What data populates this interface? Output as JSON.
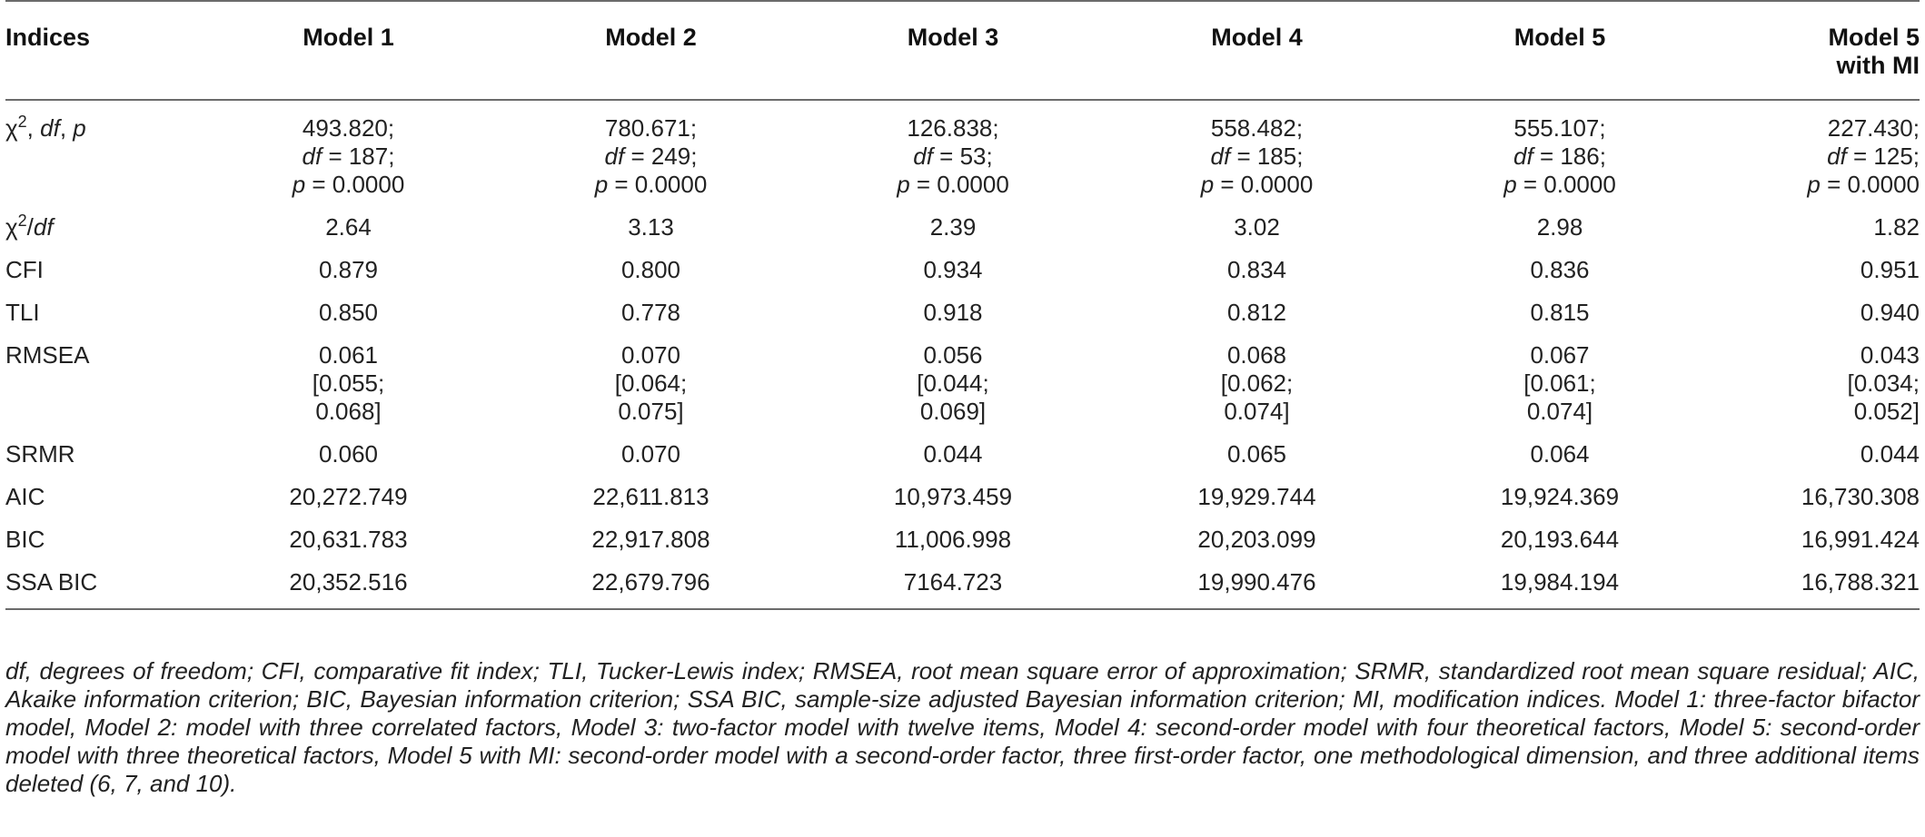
{
  "table": {
    "headers": [
      "Indices",
      "Model 1",
      "Model 2",
      "Model 3",
      "Model 4",
      "Model 5",
      "Model 5 with MI"
    ],
    "rows": [
      {
        "label": "χ², df, p",
        "cells": [
          [
            "493.820;",
            "df = 187;",
            "p = 0.0000"
          ],
          [
            "780.671;",
            "df = 249;",
            "p = 0.0000"
          ],
          [
            "126.838;",
            "df = 53;",
            "p = 0.0000"
          ],
          [
            "558.482;",
            "df = 185;",
            "p = 0.0000"
          ],
          [
            "555.107;",
            "df = 186;",
            "p = 0.0000"
          ],
          [
            "227.430;",
            "df = 125;",
            "p = 0.0000"
          ]
        ]
      },
      {
        "label": "χ²/df",
        "cells": [
          [
            "2.64"
          ],
          [
            "3.13"
          ],
          [
            "2.39"
          ],
          [
            "3.02"
          ],
          [
            "2.98"
          ],
          [
            "1.82"
          ]
        ]
      },
      {
        "label": "CFI",
        "cells": [
          [
            "0.879"
          ],
          [
            "0.800"
          ],
          [
            "0.934"
          ],
          [
            "0.834"
          ],
          [
            "0.836"
          ],
          [
            "0.951"
          ]
        ]
      },
      {
        "label": "TLI",
        "cells": [
          [
            "0.850"
          ],
          [
            "0.778"
          ],
          [
            "0.918"
          ],
          [
            "0.812"
          ],
          [
            "0.815"
          ],
          [
            "0.940"
          ]
        ]
      },
      {
        "label": "RMSEA",
        "cells": [
          [
            "0.061",
            "[0.055;",
            "0.068]"
          ],
          [
            "0.070",
            "[0.064;",
            "0.075]"
          ],
          [
            "0.056",
            "[0.044;",
            "0.069]"
          ],
          [
            "0.068",
            "[0.062;",
            "0.074]"
          ],
          [
            "0.067",
            "[0.061;",
            "0.074]"
          ],
          [
            "0.043",
            "[0.034;",
            "0.052]"
          ]
        ]
      },
      {
        "label": "SRMR",
        "cells": [
          [
            "0.060"
          ],
          [
            "0.070"
          ],
          [
            "0.044"
          ],
          [
            "0.065"
          ],
          [
            "0.064"
          ],
          [
            "0.044"
          ]
        ]
      },
      {
        "label": "AIC",
        "cells": [
          [
            "20,272.749"
          ],
          [
            "22,611.813"
          ],
          [
            "10,973.459"
          ],
          [
            "19,929.744"
          ],
          [
            "19,924.369"
          ],
          [
            "16,730.308"
          ]
        ]
      },
      {
        "label": "BIC",
        "cells": [
          [
            "20,631.783"
          ],
          [
            "22,917.808"
          ],
          [
            "11,006.998"
          ],
          [
            "20,203.099"
          ],
          [
            "20,193.644"
          ],
          [
            "16,991.424"
          ]
        ]
      },
      {
        "label": "SSA BIC",
        "cells": [
          [
            "20,352.516"
          ],
          [
            "22,679.796"
          ],
          [
            "7164.723"
          ],
          [
            "19,990.476"
          ],
          [
            "19,984.194"
          ],
          [
            "16,788.321"
          ]
        ]
      }
    ]
  },
  "footnote": "df, degrees of freedom; CFI, comparative fit index; TLI, Tucker-Lewis index; RMSEA, root mean square error of approximation; SRMR, standardized root mean square residual; AIC, Akaike information criterion; BIC, Bayesian information criterion; SSA BIC, sample-size adjusted Bayesian information criterion; MI, modification indices. Model 1: three-factor bifactor model, Model 2: model with three correlated factors, Model 3: two-factor model with twelve items, Model 4: second-order model with four theoretical factors, Model 5: second-order model with three theoretical factors, Model 5 with MI: second-order model with a second-order factor, three first-order factor, one methodological dimension, and three additional items deleted (6, 7, and 10)."
}
